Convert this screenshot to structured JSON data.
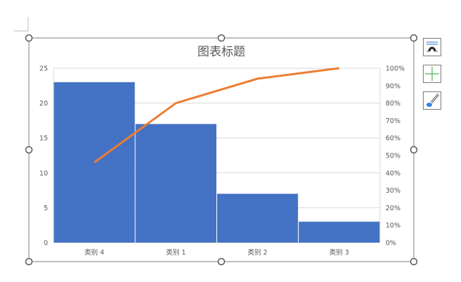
{
  "chart_data": {
    "type": "pareto",
    "title": "图表标题",
    "categories": [
      "类别 4",
      "类别 1",
      "类别 2",
      "类别 3"
    ],
    "values": [
      23,
      17,
      7,
      3
    ],
    "cumulative_percent": [
      46,
      80,
      94,
      100
    ],
    "ylim": [
      0,
      25
    ],
    "yticks": [
      "0",
      "5",
      "10",
      "15",
      "20",
      "25"
    ],
    "y2lim": [
      0,
      100
    ],
    "y2ticks": [
      "0%",
      "10%",
      "20%",
      "30%",
      "40%",
      "50%",
      "60%",
      "70%",
      "80%",
      "90%",
      "100%"
    ],
    "grid": true,
    "colors": {
      "bar": "#4472C4",
      "line": "#ED7D31"
    }
  },
  "side_buttons": {
    "elements": "chart-elements-icon",
    "layout": "chart-layout-icon",
    "styles": "chart-styles-brush-icon"
  }
}
